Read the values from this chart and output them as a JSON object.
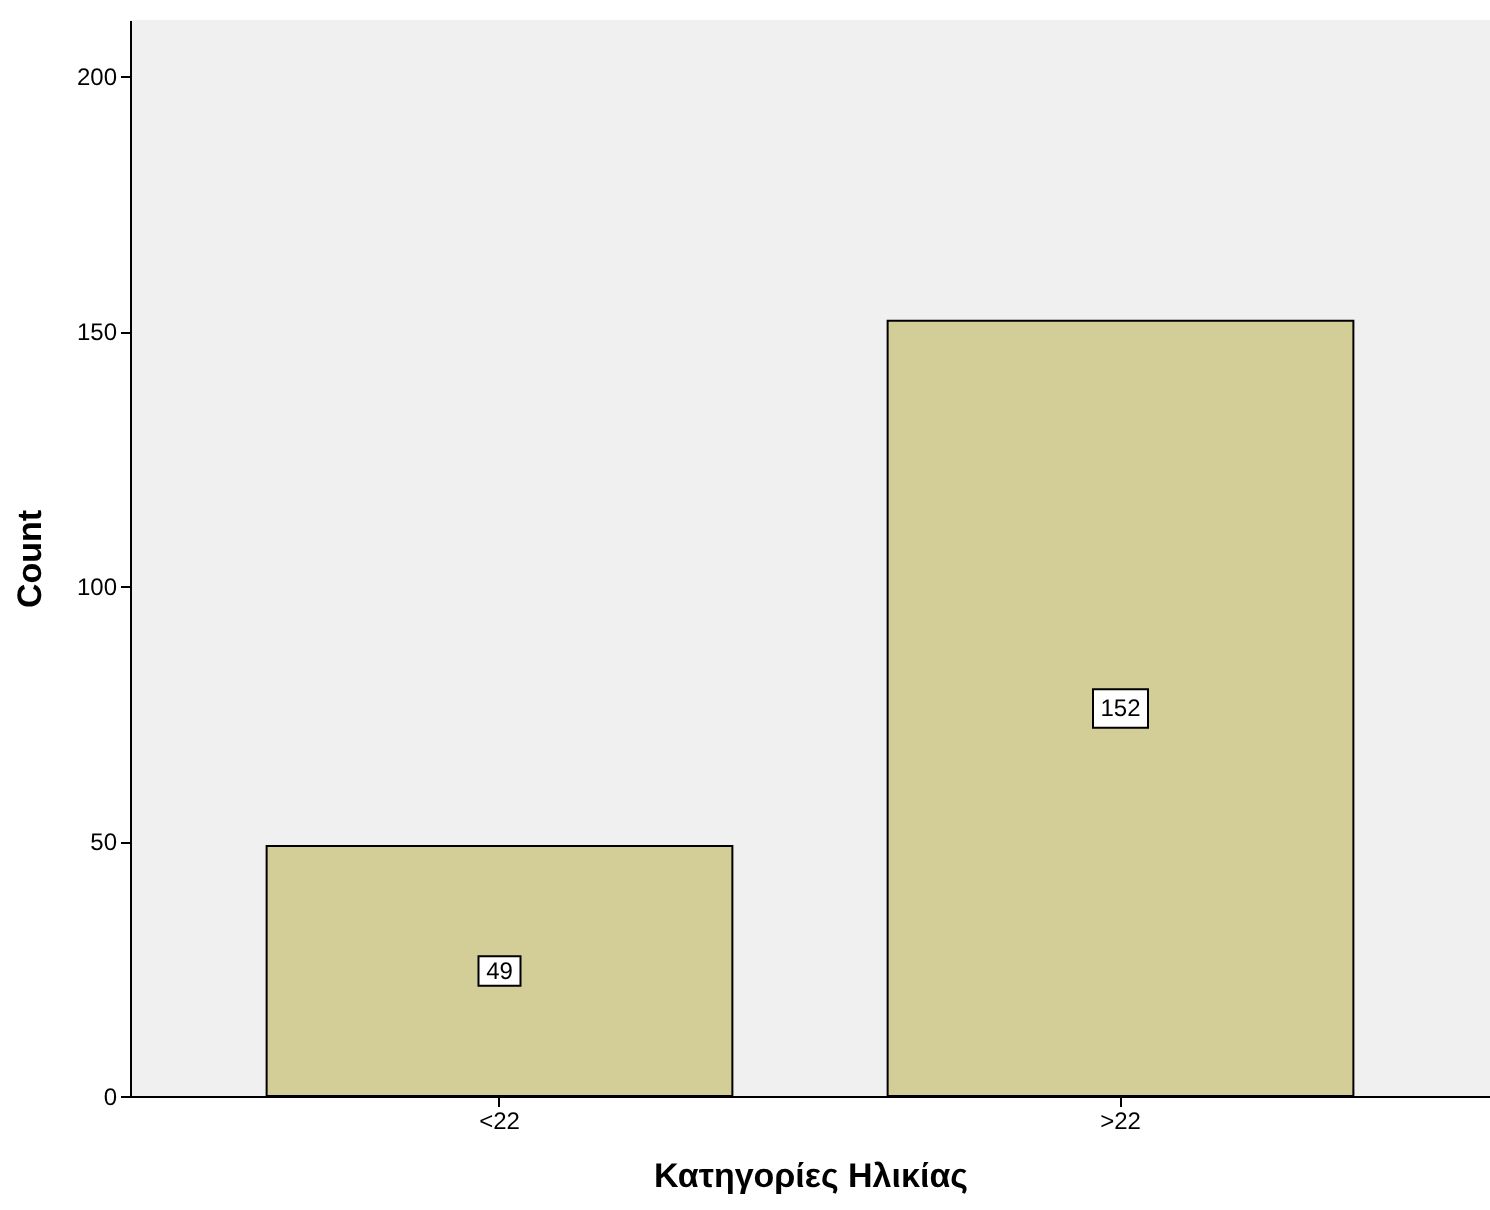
{
  "chart_data": {
    "type": "bar",
    "categories": [
      "<22",
      ">22"
    ],
    "values": [
      49,
      152
    ],
    "color": "#d3ce97",
    "xlabel": "Κατηγορίες Ηλικίας",
    "ylabel": "Count",
    "ylim": [
      0,
      211
    ],
    "yticks": [
      0,
      50,
      100,
      150,
      200
    ],
    "data_labels": true,
    "grid": false
  }
}
